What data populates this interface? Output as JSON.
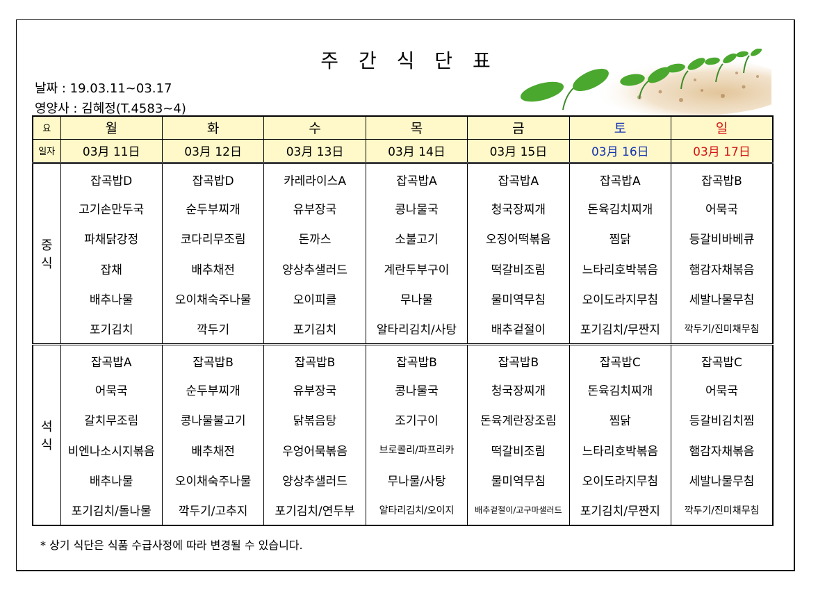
{
  "title": "주 간 식 단 표",
  "date_line": "날짜 : 19.03.11~03.17",
  "dietitian_line": "영양사 : 김혜정(T.4583~4)",
  "header": {
    "day_label": "요",
    "date_label": "일자",
    "days": [
      "월",
      "화",
      "수",
      "목",
      "금",
      "토",
      "일"
    ],
    "dates": [
      "03月 11日",
      "03月 12日",
      "03月 13日",
      "03月 14日",
      "03月 15日",
      "03月 16日",
      "03月 17日"
    ]
  },
  "lunch": {
    "label": "중\n식",
    "rows": [
      [
        "잡곡밥D",
        "잡곡밥D",
        "카레라이스A",
        "잡곡밥A",
        "잡곡밥A",
        "잡곡밥A",
        "잡곡밥B"
      ],
      [
        "고기손만두국",
        "순두부찌개",
        "유부장국",
        "콩나물국",
        "청국장찌개",
        "돈육김치찌개",
        "어묵국"
      ],
      [
        "파채닭강정",
        "코다리무조림",
        "돈까스",
        "소불고기",
        "오징어떡볶음",
        "찜닭",
        "등갈비바베큐"
      ],
      [
        "잡채",
        "배추채전",
        "양상추샐러드",
        "계란두부구이",
        "떡갈비조림",
        "느타리호박볶음",
        "햄감자채볶음"
      ],
      [
        "배추나물",
        "오이채숙주나물",
        "오이피클",
        "무나물",
        "물미역무침",
        "오이도라지무침",
        "세발나물무침"
      ],
      [
        "포기김치",
        "깍두기",
        "포기김치",
        "알타리김치/사탕",
        "배추겉절이",
        "포기김치/무짠지",
        "깍두기/진미채무침"
      ]
    ]
  },
  "dinner": {
    "label": "석\n식",
    "rows": [
      [
        "잡곡밥A",
        "잡곡밥B",
        "잡곡밥B",
        "잡곡밥B",
        "잡곡밥B",
        "잡곡밥C",
        "잡곡밥C"
      ],
      [
        "어묵국",
        "순두부찌개",
        "유부장국",
        "콩나물국",
        "청국장찌개",
        "돈육김치찌개",
        "어묵국"
      ],
      [
        "갈치무조림",
        "콩나물불고기",
        "닭볶음탕",
        "조기구이",
        "돈육계란장조림",
        "찜닭",
        "등갈비김치찜"
      ],
      [
        "비엔나소시지볶음",
        "배추채전",
        "우엉어묵볶음",
        "브로콜리/파프리카",
        "떡갈비조림",
        "느타리호박볶음",
        "햄감자채볶음"
      ],
      [
        "배추나물",
        "오이채숙주나물",
        "양상추샐러드",
        "무나물/사탕",
        "물미역무침",
        "오이도라지무침",
        "세발나물무침"
      ],
      [
        "포기김치/돌나물",
        "깍두기/고추지",
        "포기김치/연두부",
        "알타리김치/오이지",
        "배추겉절이/고구마샐러드",
        "포기김치/무짠지",
        "깍두기/진미채무침"
      ]
    ]
  },
  "note": "* 상기 식단은 식품 수급사정에 따라 변경될 수 있습니다.",
  "colors": {
    "header_bg": "#fff8c8",
    "saturday": "#1434b4",
    "sunday": "#d41414"
  },
  "decoration_icon": "sprouts-illustration"
}
